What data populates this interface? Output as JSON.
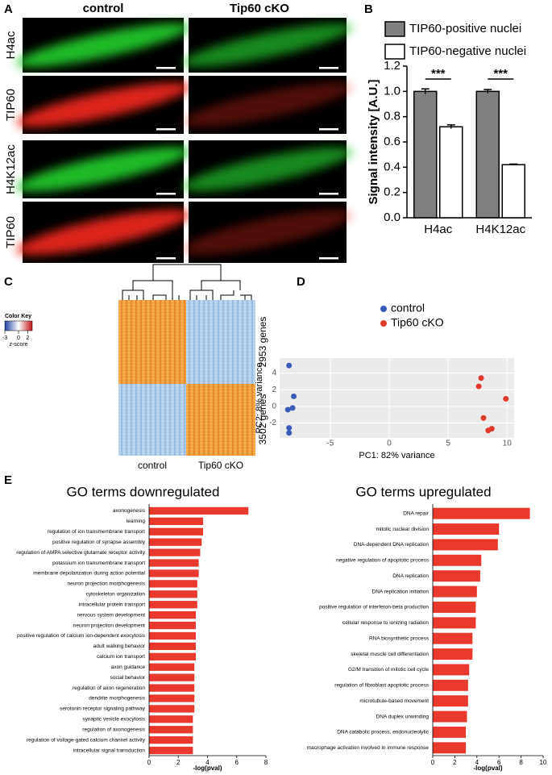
{
  "figure": {
    "panel_labels": [
      "A",
      "B",
      "C",
      "D",
      "E"
    ],
    "microscopy": {
      "columns": [
        "control",
        "Tip60 cKO"
      ],
      "rows": [
        "H4ac",
        "TIP60",
        "H4K12ac",
        "TIP60"
      ]
    },
    "heatmap": {
      "color_key_title": "Color Key",
      "color_key_label": "z-score",
      "key_range": [
        -3,
        3
      ],
      "key_ticks": [
        -3,
        0,
        2
      ],
      "row_groups": [
        "2953 genes",
        "3502 genes"
      ],
      "column_groups": [
        "control",
        "Tip60 cKO"
      ]
    }
  },
  "chart_data": [
    {
      "type": "bar",
      "ylabel": "Signal intensity [A.U.]",
      "categories": [
        "H4ac",
        "H4K12ac"
      ],
      "series": [
        {
          "name": "TIP60-positive nuclei",
          "color": "#808080",
          "values": [
            1.0,
            1.0
          ],
          "errors": [
            0.02,
            0.015
          ]
        },
        {
          "name": "TIP60-negative nuclei",
          "color": "#ffffff",
          "values": [
            0.72,
            0.42
          ],
          "errors": [
            0.015,
            0.005
          ]
        }
      ],
      "ylim": [
        0,
        1.2
      ],
      "yticks": [
        {
          "value": 0,
          "label": "0.0"
        },
        0.2,
        0.4,
        0.6,
        0.8,
        {
          "value": 1,
          "label": "1.0"
        },
        1.2
      ],
      "annotations": [
        "***",
        "***"
      ],
      "legend": "top"
    },
    {
      "type": "scatter",
      "xlabel": "PC1: 82% variance",
      "ylabel": "PC2: 8% variance",
      "series": [
        {
          "name": "control",
          "color": "#3a5cb8",
          "x": [
            -8.5,
            -8.1,
            -8.2,
            -8.6,
            -8.5,
            -8.5
          ],
          "values": [
            4.9,
            1.2,
            -0.2,
            -0.4,
            -2.6,
            -3.2
          ]
        },
        {
          "name": "Tip60 cKO",
          "color": "#e0392b",
          "x": [
            7.8,
            7.6,
            9.9,
            8.0,
            8.7,
            8.4
          ],
          "values": [
            3.4,
            2.4,
            0.9,
            -1.4,
            -2.7,
            -2.9
          ]
        }
      ],
      "xlim": [
        -9.3,
        10.6
      ],
      "ylim": [
        -3.8,
        5.8
      ],
      "xticks": [
        -5,
        0,
        5,
        10
      ],
      "yticks": [
        -2,
        0,
        2,
        4
      ],
      "grid": true,
      "legend": "top"
    },
    {
      "type": "bar",
      "orientation": "horizontal",
      "title": "GO terms downregulated",
      "xlabel": "-log(pval)",
      "color": "#e8392c",
      "categories": [
        "axonogenesis",
        "learning",
        "regulation of ion transmembrane transport",
        "positive regulation of synapse assembly",
        "regulation of AMPA selective glutamate receptor activity",
        "potassium ion transmembrane transport",
        "membrane depolarization during action potential",
        "neuron projection morphogenesis",
        "cytoskeleton organization",
        "intracellular protein transport",
        "nervous system development",
        "neuron projection development",
        "positive regulation of calcium ion-dependent exocytosis",
        "adult walking behavior",
        "calcium ion transport",
        "axon guidance",
        "social behavior",
        "regulation of axon regeneration",
        "dendrite morphogenesis",
        "serotonin receptor signaling pathway",
        "synaptic vesicle exocytosis",
        "regulation of axonogenesis",
        "regulation of voltage-gated calcium channel activity",
        "intracellular signal transduction"
      ],
      "values": [
        6.8,
        3.7,
        3.7,
        3.6,
        3.5,
        3.4,
        3.4,
        3.3,
        3.3,
        3.3,
        3.2,
        3.2,
        3.2,
        3.2,
        3.2,
        3.1,
        3.1,
        3.1,
        3.1,
        3.1,
        3.0,
        3.0,
        3.0,
        3.0
      ],
      "xlim": [
        0,
        8
      ],
      "xticks": [
        0,
        2,
        4,
        6,
        8
      ]
    },
    {
      "type": "bar",
      "orientation": "horizontal",
      "title": "GO terms upregulated",
      "xlabel": "-log(pval)",
      "color": "#e8392c",
      "categories": [
        "DNA repair",
        "mitotic nuclear division",
        "DNA-dependent DNA replication",
        "negative regulation of apoptotic process",
        "DNA replication",
        "DNA replication initiation",
        "positive regulation of interferon-beta production",
        "cellular response to ionizing radiation",
        "RNA biosynthetic process",
        "skeletal muscle cell differentiation",
        "G2/M transition of mitotic cell cycle",
        "regulation of fibroblast apoptotic process",
        "microtubule-based movement",
        "DNA duplex unwinding",
        "DNA catabolic process, endonucleolytic",
        "macrophage activation involved in immune response"
      ],
      "values": [
        8.8,
        6.0,
        5.9,
        4.4,
        4.3,
        4.0,
        3.9,
        3.9,
        3.6,
        3.6,
        3.3,
        3.2,
        3.2,
        3.1,
        3.0,
        3.0
      ],
      "xlim": [
        0,
        10
      ],
      "xticks": [
        0,
        2,
        4,
        6,
        8,
        10
      ]
    }
  ]
}
